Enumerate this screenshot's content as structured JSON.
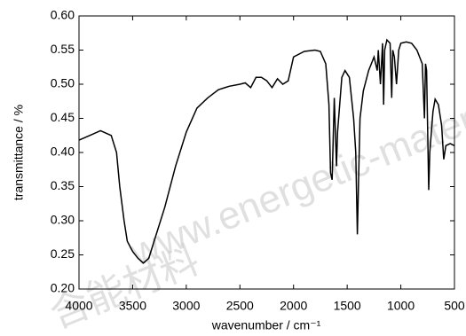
{
  "chart_data": {
    "type": "line",
    "x_label": "wavenumber / cm⁻¹",
    "y_label": "transmittance / %",
    "watermark": [
      "www.energetic-mater",
      "含能材料"
    ],
    "x": [
      4000,
      3900,
      3800,
      3700,
      3650,
      3620,
      3580,
      3550,
      3500,
      3450,
      3400,
      3350,
      3300,
      3200,
      3100,
      3000,
      2900,
      2800,
      2700,
      2600,
      2500,
      2450,
      2400,
      2350,
      2300,
      2250,
      2200,
      2150,
      2100,
      2050,
      2000,
      1900,
      1800,
      1750,
      1700,
      1670,
      1655,
      1640,
      1620,
      1600,
      1590,
      1550,
      1520,
      1480,
      1440,
      1420,
      1405,
      1395,
      1380,
      1350,
      1300,
      1250,
      1220,
      1210,
      1190,
      1170,
      1160,
      1150,
      1130,
      1100,
      1085,
      1075,
      1060,
      1040,
      1020,
      1000,
      950,
      900,
      850,
      800,
      780,
      770,
      760,
      740,
      730,
      700,
      680,
      650,
      620,
      600,
      580,
      540,
      500
    ],
    "series": [
      {
        "color": "#000000",
        "values": [
          0.418,
          0.425,
          0.432,
          0.425,
          0.4,
          0.35,
          0.3,
          0.27,
          0.255,
          0.245,
          0.238,
          0.245,
          0.27,
          0.32,
          0.38,
          0.43,
          0.465,
          0.48,
          0.492,
          0.497,
          0.5,
          0.502,
          0.495,
          0.51,
          0.51,
          0.505,
          0.495,
          0.508,
          0.5,
          0.505,
          0.54,
          0.548,
          0.55,
          0.548,
          0.53,
          0.47,
          0.37,
          0.36,
          0.48,
          0.38,
          0.43,
          0.51,
          0.52,
          0.51,
          0.45,
          0.4,
          0.28,
          0.35,
          0.45,
          0.49,
          0.52,
          0.54,
          0.52,
          0.55,
          0.5,
          0.56,
          0.47,
          0.55,
          0.565,
          0.56,
          0.48,
          0.55,
          0.54,
          0.5,
          0.55,
          0.56,
          0.562,
          0.56,
          0.55,
          0.53,
          0.45,
          0.53,
          0.52,
          0.345,
          0.4,
          0.46,
          0.478,
          0.47,
          0.44,
          0.39,
          0.41,
          0.413,
          0.41
        ]
      }
    ],
    "xlim": [
      4000,
      500
    ],
    "xticks": [
      4000,
      3500,
      3000,
      2500,
      2000,
      1500,
      1000,
      500
    ],
    "ylim": [
      0.2,
      0.6
    ],
    "yticks": [
      {
        "value": 0.2,
        "label": "0.20"
      },
      {
        "value": 0.25,
        "label": "0.25"
      },
      {
        "value": 0.3,
        "label": "0.30"
      },
      {
        "value": 0.35,
        "label": "0.35"
      },
      {
        "value": 0.4,
        "label": "0.40"
      },
      {
        "value": 0.45,
        "label": "0.45"
      },
      {
        "value": 0.5,
        "label": "0.50"
      },
      {
        "value": 0.55,
        "label": "0.55"
      },
      {
        "value": 0.6,
        "label": "0.60"
      }
    ]
  }
}
